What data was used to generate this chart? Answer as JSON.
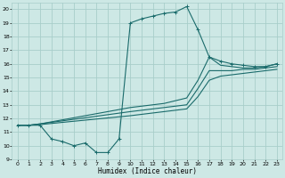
{
  "title": "",
  "xlabel": "Humidex (Indice chaleur)",
  "bg_color": "#cde8e5",
  "grid_color": "#a8ceca",
  "line_color": "#1a6b6b",
  "xlim": [
    -0.5,
    23.5
  ],
  "ylim": [
    9,
    20.5
  ],
  "xticks": [
    0,
    1,
    2,
    3,
    4,
    5,
    6,
    7,
    8,
    9,
    10,
    11,
    12,
    13,
    14,
    15,
    16,
    17,
    18,
    19,
    20,
    21,
    22,
    23
  ],
  "yticks": [
    9,
    10,
    11,
    12,
    13,
    14,
    15,
    16,
    17,
    18,
    19,
    20
  ],
  "line1_x": [
    0,
    1,
    2,
    3,
    4,
    5,
    6,
    7,
    8,
    9,
    10,
    11,
    12,
    13,
    14,
    15,
    16,
    17,
    18,
    19,
    20,
    21,
    22,
    23
  ],
  "line1_y": [
    11.5,
    11.5,
    11.5,
    10.5,
    10.3,
    10.0,
    10.2,
    9.5,
    9.5,
    10.5,
    19.0,
    19.3,
    19.5,
    19.7,
    19.8,
    20.2,
    18.5,
    16.5,
    16.2,
    16.0,
    15.9,
    15.8,
    15.8,
    16.0
  ],
  "line2_x": [
    0,
    1,
    2,
    10,
    11,
    12,
    13,
    14,
    15,
    16,
    17,
    18,
    19,
    20,
    21,
    22,
    23
  ],
  "line2_y": [
    11.5,
    11.5,
    11.6,
    12.8,
    12.9,
    13.0,
    13.1,
    13.3,
    13.5,
    14.8,
    16.5,
    15.9,
    15.8,
    15.7,
    15.7,
    15.8,
    16.0
  ],
  "line3_x": [
    0,
    1,
    2,
    10,
    11,
    12,
    13,
    14,
    15,
    16,
    17,
    18,
    19,
    20,
    21,
    22,
    23
  ],
  "line3_y": [
    11.5,
    11.5,
    11.6,
    12.5,
    12.6,
    12.7,
    12.8,
    12.9,
    13.0,
    14.2,
    15.5,
    15.5,
    15.5,
    15.6,
    15.6,
    15.7,
    15.8
  ],
  "line4_x": [
    0,
    1,
    2,
    10,
    11,
    12,
    13,
    14,
    15,
    16,
    17,
    18,
    19,
    20,
    21,
    22,
    23
  ],
  "line4_y": [
    11.5,
    11.5,
    11.55,
    12.2,
    12.3,
    12.4,
    12.5,
    12.6,
    12.7,
    13.6,
    14.8,
    15.1,
    15.2,
    15.3,
    15.4,
    15.5,
    15.6
  ]
}
